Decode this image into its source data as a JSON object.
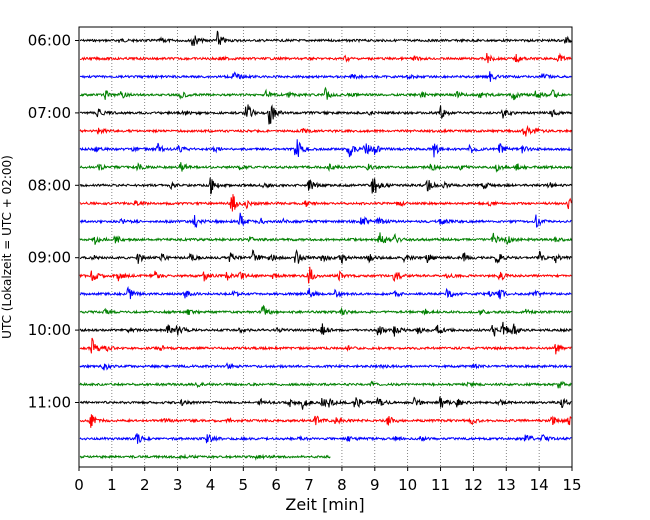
{
  "chart_data": {
    "type": "line",
    "title": "",
    "xlabel": "Zeit  [min]",
    "ylabel": "UTC (Lokalzeit = UTC + 02:00)",
    "xlim": [
      0,
      15
    ],
    "x_ticks": [
      "0",
      "1",
      "2",
      "3",
      "4",
      "5",
      "6",
      "7",
      "8",
      "9",
      "10",
      "11",
      "12",
      "13",
      "14",
      "15"
    ],
    "x_grid": "vertical dotted",
    "y_tick_labels": [
      "06:00",
      "07:00",
      "08:00",
      "09:00",
      "10:00",
      "11:00"
    ],
    "trace_interval_minutes": 15,
    "trace_colors": [
      "#000000",
      "#ff0000",
      "#0000ff",
      "#008000"
    ],
    "traces": [
      {
        "start": "06:00",
        "color": "#000000",
        "end_min": 15,
        "events": [
          [
            3.45,
            1.0
          ],
          [
            4.2,
            1.1
          ],
          [
            1.2,
            0.3
          ],
          [
            14.8,
            0.45
          ],
          [
            2.5,
            0.25
          ]
        ]
      },
      {
        "start": "06:15",
        "color": "#ff0000",
        "end_min": 15,
        "events": [
          [
            8.1,
            0.3
          ],
          [
            12.4,
            0.55
          ],
          [
            13.3,
            0.4
          ],
          [
            14.6,
            0.5
          ],
          [
            4.3,
            0.2
          ],
          [
            10.2,
            0.2
          ]
        ]
      },
      {
        "start": "06:30",
        "color": "#0000ff",
        "end_min": 15,
        "events": [
          [
            4.7,
            0.55
          ],
          [
            12.5,
            0.6
          ],
          [
            8.3,
            0.3
          ],
          [
            14.1,
            0.35
          ],
          [
            10.0,
            0.25
          ]
        ]
      },
      {
        "start": "06:45",
        "color": "#008000",
        "end_min": 15,
        "events": [
          [
            0.8,
            0.5
          ],
          [
            1.3,
            0.55
          ],
          [
            3.1,
            0.4
          ],
          [
            5.7,
            0.5
          ],
          [
            7.5,
            0.7
          ],
          [
            10.4,
            0.35
          ],
          [
            11.5,
            0.3
          ],
          [
            12.2,
            0.4
          ],
          [
            13.2,
            0.6
          ],
          [
            13.9,
            0.55
          ],
          [
            14.4,
            0.5
          ],
          [
            6.4,
            0.35
          ],
          [
            8.2,
            0.3
          ]
        ]
      },
      {
        "start": "07:00",
        "color": "#000000",
        "end_min": 15,
        "events": [
          [
            0.55,
            0.6
          ],
          [
            5.1,
            1.2
          ],
          [
            5.8,
            1.8
          ],
          [
            11.0,
            0.8
          ],
          [
            12.9,
            0.5
          ],
          [
            14.4,
            0.4
          ],
          [
            3.2,
            0.3
          ],
          [
            8.8,
            0.3
          ]
        ]
      },
      {
        "start": "07:15",
        "color": "#ff0000",
        "end_min": 15,
        "events": [
          [
            13.55,
            0.8
          ],
          [
            0.6,
            0.4
          ],
          [
            13.9,
            0.3
          ],
          [
            6.8,
            0.25
          ]
        ]
      },
      {
        "start": "07:30",
        "color": "#0000ff",
        "end_min": 15,
        "events": [
          [
            2.4,
            0.6
          ],
          [
            3.0,
            0.45
          ],
          [
            6.6,
            1.6
          ],
          [
            8.2,
            1.2
          ],
          [
            8.7,
            0.8
          ],
          [
            9.0,
            0.5
          ],
          [
            10.8,
            0.9
          ],
          [
            11.9,
            0.6
          ],
          [
            12.8,
            0.8
          ],
          [
            13.5,
            0.5
          ],
          [
            4.1,
            0.4
          ],
          [
            0.5,
            0.3
          ],
          [
            1.6,
            0.35
          ]
        ]
      },
      {
        "start": "07:45",
        "color": "#008000",
        "end_min": 15,
        "events": [
          [
            1.8,
            0.5
          ],
          [
            3.1,
            0.6
          ],
          [
            7.6,
            0.5
          ],
          [
            8.8,
            0.4
          ],
          [
            10.7,
            0.45
          ],
          [
            11.6,
            0.3
          ],
          [
            12.7,
            0.5
          ],
          [
            13.3,
            0.45
          ],
          [
            0.6,
            0.3
          ],
          [
            4.9,
            0.3
          ]
        ]
      },
      {
        "start": "08:00",
        "color": "#000000",
        "end_min": 15,
        "events": [
          [
            4.0,
            1.0
          ],
          [
            7.0,
            0.9
          ],
          [
            8.95,
            1.6
          ],
          [
            10.6,
            0.8
          ],
          [
            11.1,
            0.6
          ],
          [
            12.3,
            0.5
          ],
          [
            2.8,
            0.3
          ],
          [
            5.6,
            0.3
          ],
          [
            14.3,
            0.35
          ]
        ]
      },
      {
        "start": "08:15",
        "color": "#ff0000",
        "end_min": 15,
        "events": [
          [
            4.65,
            1.3
          ],
          [
            5.1,
            0.5
          ],
          [
            9.7,
            0.4
          ],
          [
            14.9,
            0.6
          ],
          [
            1.7,
            0.3
          ],
          [
            6.9,
            0.3
          ],
          [
            12.5,
            0.3
          ]
        ]
      },
      {
        "start": "08:30",
        "color": "#0000ff",
        "end_min": 15,
        "events": [
          [
            3.5,
            1.0
          ],
          [
            4.9,
            0.9
          ],
          [
            5.5,
            0.4
          ],
          [
            8.6,
            0.8
          ],
          [
            9.1,
            0.5
          ],
          [
            11.0,
            0.4
          ],
          [
            13.9,
            0.8
          ],
          [
            1.3,
            0.3
          ],
          [
            6.2,
            0.3
          ]
        ]
      },
      {
        "start": "08:45",
        "color": "#008000",
        "end_min": 15,
        "events": [
          [
            0.5,
            0.8
          ],
          [
            1.1,
            0.55
          ],
          [
            9.15,
            1.2
          ],
          [
            9.6,
            0.6
          ],
          [
            12.6,
            0.7
          ],
          [
            13.0,
            0.5
          ],
          [
            5.2,
            0.25
          ],
          [
            14.5,
            0.3
          ]
        ]
      },
      {
        "start": "09:00",
        "color": "#000000",
        "end_min": 15,
        "events": [
          [
            1.8,
            0.6
          ],
          [
            2.5,
            0.5
          ],
          [
            3.4,
            0.5
          ],
          [
            4.6,
            0.7
          ],
          [
            5.3,
            0.9
          ],
          [
            5.8,
            0.6
          ],
          [
            6.6,
            1.0
          ],
          [
            7.4,
            0.5
          ],
          [
            8.0,
            0.45
          ],
          [
            8.8,
            0.5
          ],
          [
            9.9,
            0.4
          ],
          [
            10.6,
            0.5
          ],
          [
            11.7,
            0.6
          ],
          [
            12.7,
            1.1
          ],
          [
            14.0,
            0.7
          ],
          [
            14.5,
            0.5
          ],
          [
            0.4,
            0.3
          ],
          [
            7.9,
            0.3
          ]
        ]
      },
      {
        "start": "09:15",
        "color": "#ff0000",
        "end_min": 15,
        "events": [
          [
            0.4,
            0.8
          ],
          [
            1.2,
            0.5
          ],
          [
            2.3,
            0.5
          ],
          [
            3.8,
            0.55
          ],
          [
            4.5,
            0.6
          ],
          [
            4.9,
            0.5
          ],
          [
            7.0,
            1.1
          ],
          [
            7.9,
            0.5
          ],
          [
            9.6,
            0.9
          ],
          [
            12.8,
            0.6
          ],
          [
            5.9,
            0.3
          ],
          [
            11.2,
            0.3
          ]
        ]
      },
      {
        "start": "09:30",
        "color": "#0000ff",
        "end_min": 15,
        "events": [
          [
            1.5,
            0.8
          ],
          [
            3.2,
            0.6
          ],
          [
            7.0,
            0.6
          ],
          [
            7.8,
            0.5
          ],
          [
            11.2,
            0.6
          ],
          [
            12.5,
            0.5
          ],
          [
            12.8,
            0.6
          ],
          [
            13.9,
            0.3
          ],
          [
            4.7,
            0.3
          ],
          [
            9.6,
            0.3
          ]
        ]
      },
      {
        "start": "09:45",
        "color": "#008000",
        "end_min": 15,
        "events": [
          [
            5.6,
            0.9
          ],
          [
            3.3,
            0.4
          ],
          [
            10.5,
            0.35
          ],
          [
            12.2,
            0.3
          ],
          [
            8.0,
            0.3
          ],
          [
            0.8,
            0.25
          ],
          [
            13.6,
            0.3
          ]
        ]
      },
      {
        "start": "10:00",
        "color": "#000000",
        "end_min": 15,
        "events": [
          [
            2.7,
            0.6
          ],
          [
            3.0,
            0.8
          ],
          [
            7.4,
            0.7
          ],
          [
            9.1,
            0.6
          ],
          [
            9.6,
            0.7
          ],
          [
            10.3,
            0.5
          ],
          [
            10.9,
            0.6
          ],
          [
            12.6,
            1.0
          ],
          [
            12.9,
            0.9
          ],
          [
            13.2,
            0.7
          ],
          [
            4.9,
            0.35
          ],
          [
            6.0,
            0.3
          ],
          [
            1.5,
            0.3
          ]
        ]
      },
      {
        "start": "10:15",
        "color": "#ff0000",
        "end_min": 15,
        "events": [
          [
            0.4,
            1.1
          ],
          [
            0.8,
            0.5
          ],
          [
            14.5,
            0.6
          ],
          [
            2.5,
            0.25
          ],
          [
            8.2,
            0.2
          ]
        ]
      },
      {
        "start": "10:30",
        "color": "#0000ff",
        "end_min": 15,
        "events": [
          [
            0.75,
            0.6
          ],
          [
            4.5,
            0.25
          ],
          [
            9.2,
            0.2
          ],
          [
            12.0,
            0.2
          ]
        ]
      },
      {
        "start": "10:45",
        "color": "#008000",
        "end_min": 15,
        "events": [
          [
            14.6,
            0.5
          ],
          [
            3.6,
            0.2
          ],
          [
            8.9,
            0.2
          ],
          [
            11.8,
            0.2
          ]
        ]
      },
      {
        "start": "11:00",
        "color": "#000000",
        "end_min": 15,
        "events": [
          [
            5.5,
            0.6
          ],
          [
            6.4,
            0.6
          ],
          [
            6.8,
            0.7
          ],
          [
            7.4,
            0.6
          ],
          [
            7.6,
            0.5
          ],
          [
            8.4,
            0.9
          ],
          [
            9.1,
            0.6
          ],
          [
            10.2,
            0.5
          ],
          [
            11.0,
            0.8
          ],
          [
            11.5,
            0.5
          ],
          [
            14.7,
            0.7
          ],
          [
            3.1,
            0.3
          ],
          [
            12.8,
            0.35
          ]
        ]
      },
      {
        "start": "11:15",
        "color": "#ff0000",
        "end_min": 15,
        "events": [
          [
            0.35,
            0.8
          ],
          [
            7.2,
            0.6
          ],
          [
            7.8,
            0.4
          ],
          [
            9.4,
            0.6
          ],
          [
            11.9,
            0.5
          ],
          [
            14.4,
            0.6
          ],
          [
            14.9,
            0.7
          ],
          [
            4.5,
            0.3
          ],
          [
            2.6,
            0.25
          ]
        ]
      },
      {
        "start": "11:30",
        "color": "#0000ff",
        "end_min": 15,
        "events": [
          [
            1.75,
            0.7
          ],
          [
            3.9,
            0.7
          ],
          [
            8.2,
            0.4
          ],
          [
            9.6,
            0.35
          ],
          [
            13.6,
            0.6
          ],
          [
            14.1,
            0.45
          ],
          [
            10.4,
            0.3
          ],
          [
            6.7,
            0.25
          ]
        ]
      },
      {
        "start": "11:45",
        "color": "#008000",
        "end_min": 7.65,
        "events": [
          [
            3.1,
            0.2
          ],
          [
            5.4,
            0.2
          ]
        ]
      }
    ]
  }
}
